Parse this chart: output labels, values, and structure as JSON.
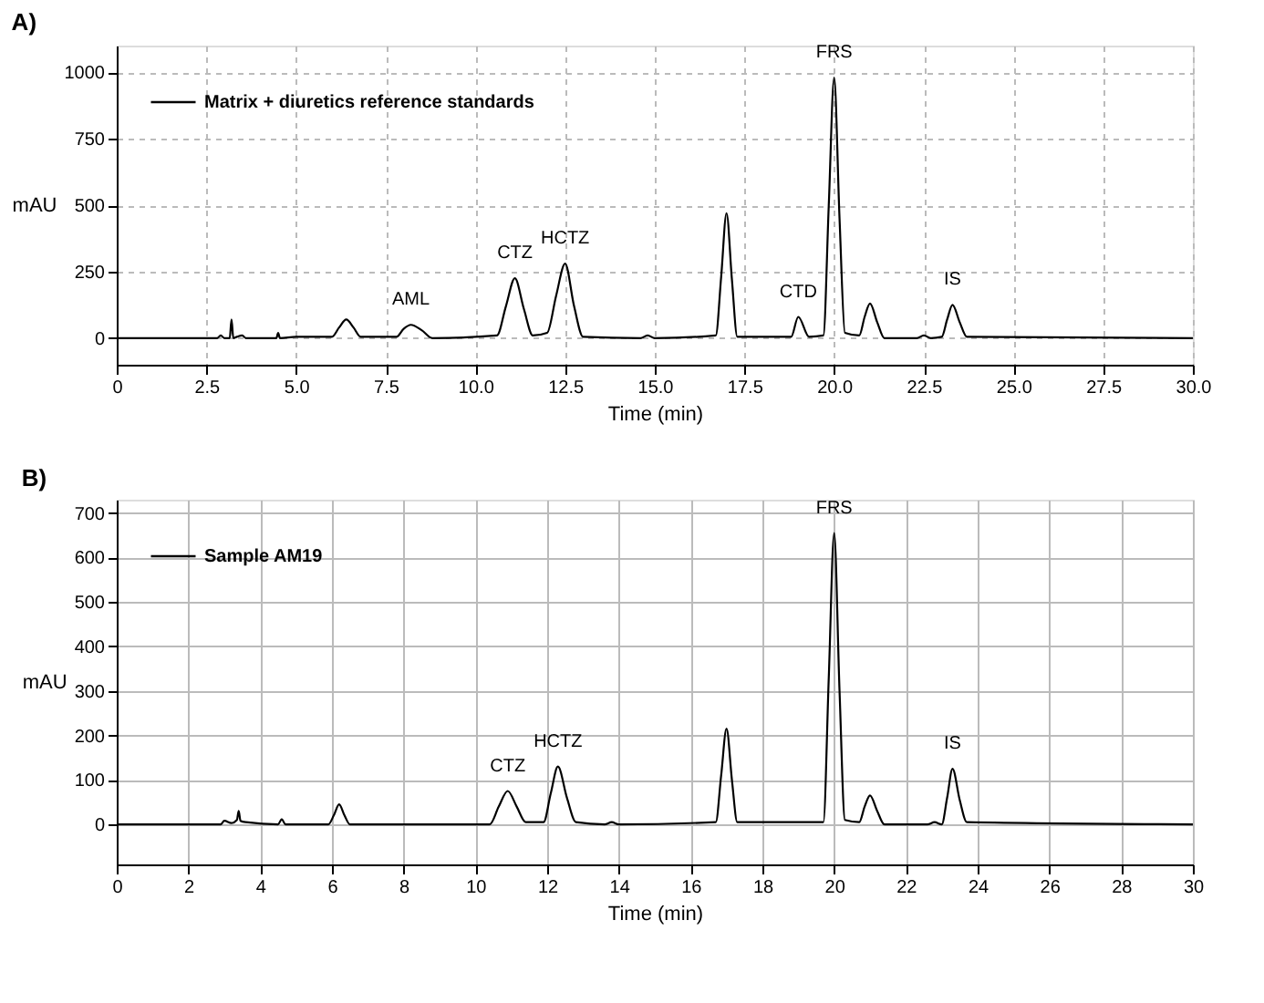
{
  "chart_data": [
    {
      "type": "line",
      "title": "A)",
      "xlabel": "Time (min)",
      "ylabel": "mAU",
      "xlim": [
        0,
        30
      ],
      "ylim": [
        -100,
        1100
      ],
      "xticks": [
        0,
        2.5,
        {
          "value": 5,
          "label": "5.0"
        },
        7.5,
        {
          "value": 10,
          "label": "10.0"
        },
        12.5,
        {
          "value": 15,
          "label": "15.0"
        },
        17.5,
        {
          "value": 20,
          "label": "20.0"
        },
        22.5,
        {
          "value": 25,
          "label": "25.0"
        },
        27.5,
        {
          "value": 30,
          "label": "30.0"
        }
      ],
      "yticks": [
        0,
        250,
        500,
        750,
        1000
      ],
      "grid": true,
      "legend": "top left",
      "marker": "none",
      "line_style": "solid",
      "series": [
        {
          "name": "Matrix + diuretics reference standards",
          "color": "#000000",
          "x": [
            0,
            2.8,
            2.9,
            3.0,
            3.15,
            3.2,
            3.25,
            3.35,
            3.5,
            3.6,
            4.45,
            4.5,
            4.55,
            5.0,
            6.0,
            6.2,
            6.4,
            6.6,
            6.8,
            7.8,
            8.0,
            8.2,
            8.5,
            8.8,
            10.6,
            10.85,
            11.1,
            11.35,
            11.6,
            12.0,
            12.25,
            12.5,
            12.75,
            13.0,
            14.6,
            14.8,
            15.0,
            16.7,
            16.85,
            17.0,
            17.15,
            17.3,
            18.8,
            19.0,
            19.3,
            19.7,
            19.85,
            20.0,
            20.15,
            20.3,
            20.7,
            20.85,
            21.0,
            21.2,
            21.4,
            22.3,
            22.5,
            22.7,
            23.0,
            23.15,
            23.3,
            23.5,
            23.7,
            30
          ],
          "values": [
            0,
            0,
            10,
            0,
            0,
            70,
            0,
            5,
            10,
            0,
            0,
            20,
            0,
            5,
            5,
            40,
            70,
            40,
            5,
            5,
            35,
            50,
            30,
            0,
            10,
            120,
            225,
            110,
            10,
            20,
            160,
            280,
            120,
            5,
            0,
            10,
            0,
            10,
            230,
            470,
            220,
            5,
            5,
            80,
            5,
            10,
            500,
            980,
            450,
            20,
            10,
            80,
            130,
            60,
            0,
            0,
            10,
            0,
            5,
            70,
            125,
            60,
            5,
            0
          ]
        }
      ],
      "annotations": [
        {
          "text": "AML",
          "x": 8.2,
          "y": 50
        },
        {
          "text": "CTZ",
          "x": 11.1,
          "y": 225
        },
        {
          "text": "HCTZ",
          "x": 12.5,
          "y": 280
        },
        {
          "text": "CTD",
          "x": 19.0,
          "y": 80
        },
        {
          "text": "FRS",
          "x": 20.0,
          "y": 980
        },
        {
          "text": "IS",
          "x": 23.3,
          "y": 125
        }
      ]
    },
    {
      "type": "line",
      "title": "B)",
      "xlabel": "Time (min)",
      "ylabel": "mAU",
      "xlim": [
        0,
        30
      ],
      "ylim": [
        -90,
        730
      ],
      "xticks": [
        0,
        2,
        4,
        6,
        8,
        10,
        12,
        14,
        16,
        18,
        20,
        22,
        24,
        26,
        28,
        30
      ],
      "yticks": [
        0,
        100,
        200,
        300,
        400,
        500,
        600,
        700
      ],
      "grid": true,
      "legend": "top left",
      "marker": "none",
      "line_style": "solid",
      "series": [
        {
          "name": "Sample AM19",
          "color": "#000000",
          "x": [
            0,
            2.9,
            3.0,
            3.2,
            3.35,
            3.4,
            3.45,
            3.6,
            4.5,
            4.6,
            4.7,
            5.9,
            6.05,
            6.2,
            6.35,
            6.5,
            10.4,
            10.65,
            10.9,
            11.15,
            11.4,
            11.9,
            12.1,
            12.3,
            12.55,
            12.8,
            13.6,
            13.8,
            14.0,
            16.7,
            16.85,
            17.0,
            17.15,
            17.3,
            19.7,
            19.85,
            20.0,
            20.15,
            20.3,
            20.7,
            20.85,
            21.0,
            21.2,
            21.4,
            22.6,
            22.8,
            23.0,
            23.0,
            23.15,
            23.3,
            23.5,
            23.7,
            30
          ],
          "values": [
            0,
            0,
            8,
            3,
            10,
            30,
            8,
            5,
            0,
            12,
            0,
            0,
            20,
            45,
            20,
            0,
            0,
            40,
            75,
            40,
            5,
            5,
            70,
            130,
            60,
            5,
            0,
            5,
            0,
            5,
            110,
            215,
            100,
            5,
            5,
            330,
            655,
            300,
            10,
            5,
            40,
            65,
            30,
            0,
            0,
            5,
            0,
            0,
            60,
            125,
            55,
            5,
            0
          ]
        }
      ],
      "annotations": [
        {
          "text": "CTZ",
          "x": 10.9,
          "y": 75
        },
        {
          "text": "HCTZ",
          "x": 12.3,
          "y": 130
        },
        {
          "text": "FRS",
          "x": 20.0,
          "y": 655
        },
        {
          "text": "IS",
          "x": 23.3,
          "y": 125
        }
      ]
    }
  ]
}
